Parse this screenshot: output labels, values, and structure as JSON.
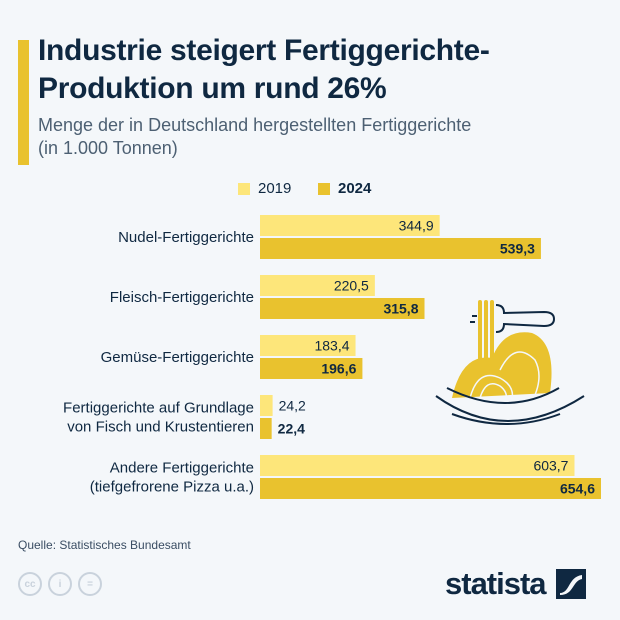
{
  "title": "Industrie steigert Fertiggerichte-Produktion um rund 26%",
  "subtitle_line1": "Menge der in Deutschland hergestellten Fertiggerichte",
  "subtitle_line2": "(in 1.000 Tonnen)",
  "source": "Quelle: Statistisches Bundesamt",
  "brand": "statista",
  "colors": {
    "2019": "#fde67a",
    "2024": "#e9c22e",
    "text": "#0f2841",
    "background": "#f4f7fa"
  },
  "icons": [
    "pasta-bowl-fork-icon",
    "cc-license-icon",
    "attribution-icon",
    "no-derivatives-icon",
    "statista-logo-icon"
  ],
  "chart_data": {
    "type": "bar",
    "orientation": "horizontal",
    "categories": [
      [
        "Nudel-Fertiggerichte"
      ],
      [
        "Fleisch-Fertiggerichte"
      ],
      [
        "Gemüse-Fertiggerichte"
      ],
      [
        "Fertiggerichte auf Grundlage",
        "von Fisch und Krustentieren"
      ],
      [
        "Andere Fertiggerichte",
        "(tiefgefrorene Pizza u.a.)"
      ]
    ],
    "series": [
      {
        "name": "2019",
        "values": [
          344.9,
          220.5,
          183.4,
          24.2,
          603.7
        ],
        "labels": [
          "344,9",
          "220,5",
          "183,4",
          "24,2",
          "603,7"
        ]
      },
      {
        "name": "2024",
        "values": [
          539.3,
          315.8,
          196.6,
          22.4,
          654.6
        ],
        "labels": [
          "539,3",
          "315,8",
          "196,6",
          "22,4",
          "654,6"
        ]
      }
    ],
    "legend_position": "top",
    "grid": false,
    "xlim": [
      0,
      654.6
    ]
  }
}
